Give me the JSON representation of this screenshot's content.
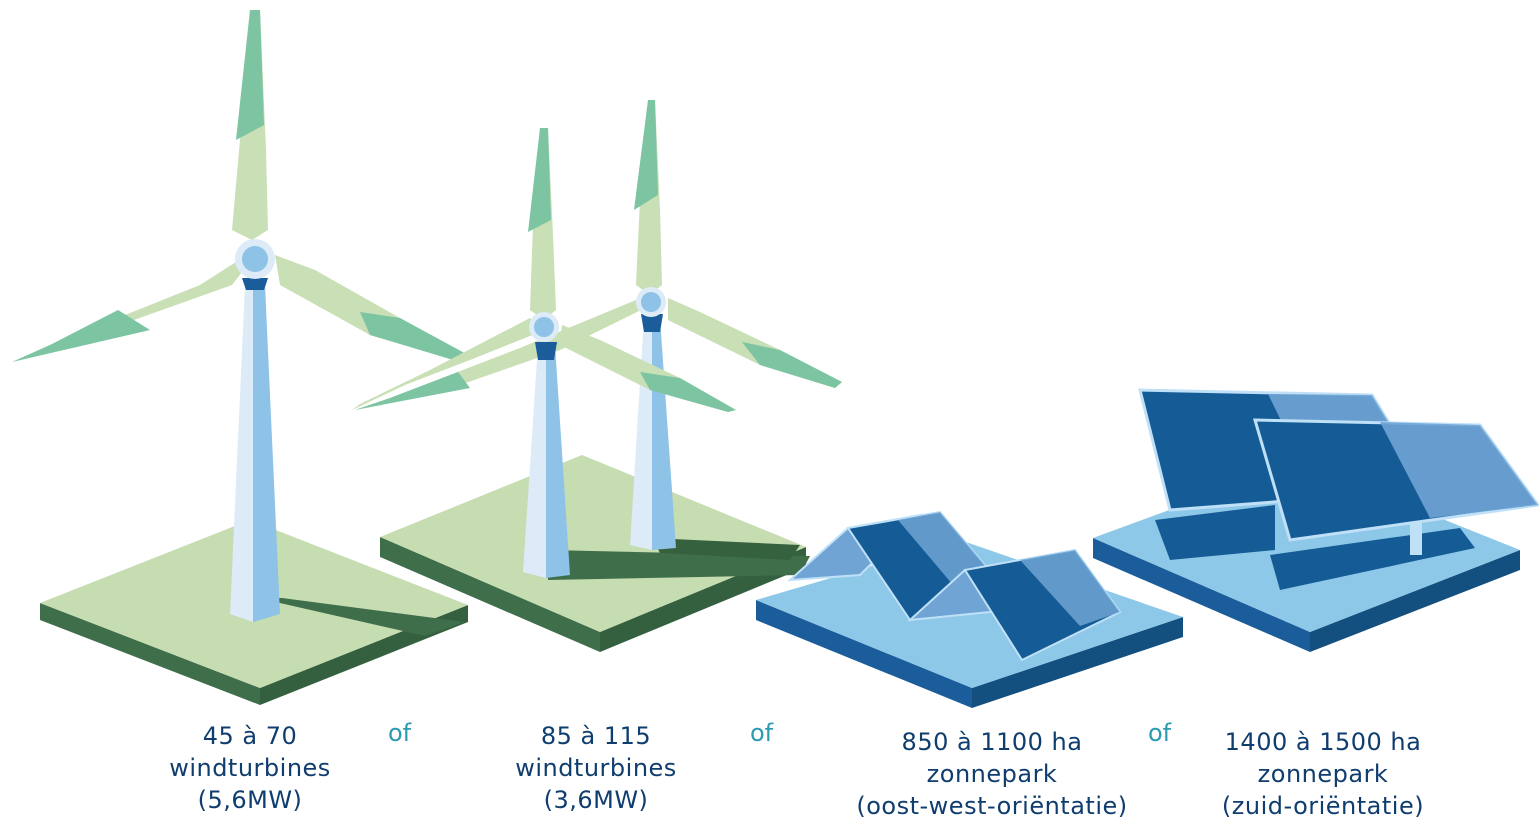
{
  "options": [
    {
      "line1": "45 à 70",
      "line2": "windturbines",
      "line3": "(5,6MW)"
    },
    {
      "line1": "85 à 115",
      "line2": "windturbines",
      "line3": "(3,6MW)"
    },
    {
      "line1": "850 à 1100 ha",
      "line2": "zonnepark",
      "line3": "(oost-west-oriëntatie)"
    },
    {
      "line1": "1400 à 1500 ha",
      "line2": "zonnepark",
      "line3": "(zuid-oriëntatie)"
    }
  ],
  "separator": "of",
  "colors": {
    "text": "#0f3d6e",
    "separator": "#2a9bb0",
    "grass_top": "#c6dcb1",
    "grass_side": "#3f6e4b",
    "blade_light": "#c9dfb5",
    "blade_accent": "#7cc4a2",
    "tower_light": "#dcebf7",
    "tower_dark": "#8ec2e6",
    "water_top": "#8ec8e8",
    "water_side": "#1a5d9a",
    "panel_dark": "#155c96",
    "panel_light": "#6fa4d4"
  }
}
